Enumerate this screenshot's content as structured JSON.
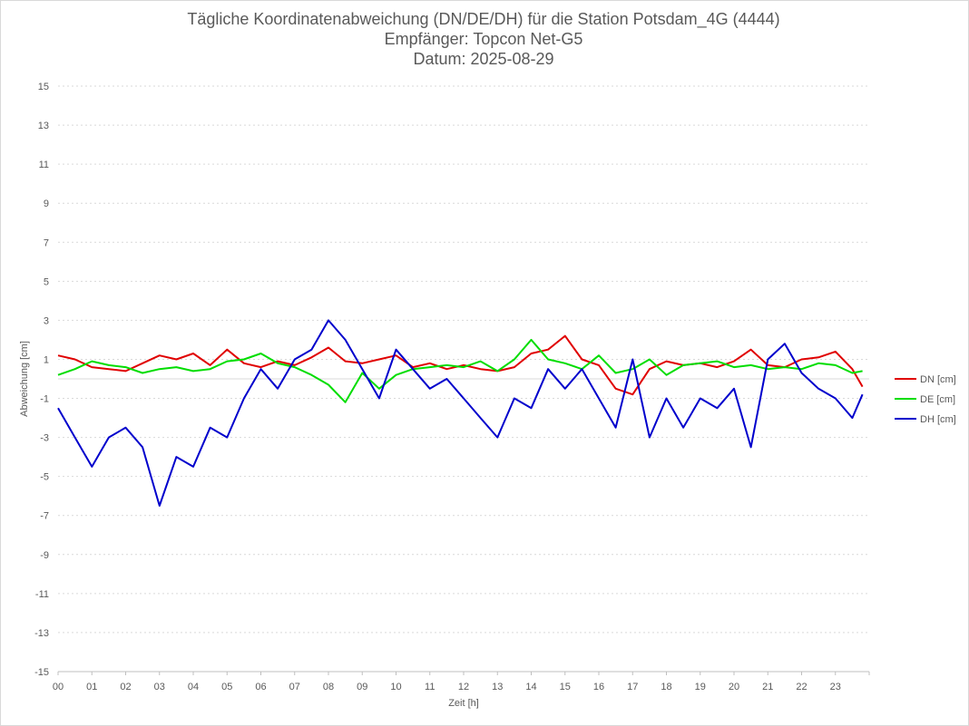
{
  "chart_data": {
    "type": "line",
    "title": "Tägliche Koordinatenabweichung (DN/DE/DH) für die Station Potsdam_4G (4444)",
    "subtitle1": "Empfänger: Topcon Net-G5",
    "subtitle2": "Datum: 2025-08-29",
    "xlabel": "Zeit [h]",
    "ylabel": "Abweichung [cm]",
    "xlim": [
      0,
      24
    ],
    "ylim": [
      -15,
      15
    ],
    "xticks": [
      "00",
      "01",
      "02",
      "03",
      "04",
      "05",
      "06",
      "07",
      "08",
      "09",
      "10",
      "11",
      "12",
      "13",
      "14",
      "15",
      "16",
      "17",
      "18",
      "19",
      "20",
      "21",
      "22",
      "23"
    ],
    "yticks": [
      15,
      13,
      11,
      9,
      7,
      5,
      3,
      1,
      -1,
      -3,
      -5,
      -7,
      -9,
      -11,
      -13,
      -15
    ],
    "grid": true,
    "legend_position": "right",
    "x": [
      0.0,
      0.5,
      1.0,
      1.5,
      2.0,
      2.5,
      3.0,
      3.5,
      4.0,
      4.5,
      5.0,
      5.5,
      6.0,
      6.5,
      7.0,
      7.5,
      8.0,
      8.5,
      9.0,
      9.5,
      10.0,
      10.5,
      11.0,
      11.5,
      12.0,
      12.5,
      13.0,
      13.5,
      14.0,
      14.5,
      15.0,
      15.5,
      16.0,
      16.5,
      17.0,
      17.5,
      18.0,
      18.5,
      19.0,
      19.5,
      20.0,
      20.5,
      21.0,
      21.5,
      22.0,
      22.5,
      23.0,
      23.5,
      23.8
    ],
    "series": [
      {
        "name": "DN [cm]",
        "color": "#e00000",
        "values": [
          1.2,
          1.0,
          0.6,
          0.5,
          0.4,
          0.8,
          1.2,
          1.0,
          1.3,
          0.7,
          1.5,
          0.8,
          0.6,
          0.9,
          0.7,
          1.1,
          1.6,
          0.9,
          0.8,
          1.0,
          1.2,
          0.6,
          0.8,
          0.5,
          0.7,
          0.5,
          0.4,
          0.6,
          1.3,
          1.5,
          2.2,
          1.0,
          0.7,
          -0.5,
          -0.8,
          0.5,
          0.9,
          0.7,
          0.8,
          0.6,
          0.9,
          1.5,
          0.7,
          0.6,
          1.0,
          1.1,
          1.4,
          0.5,
          -0.4
        ]
      },
      {
        "name": "DE [cm]",
        "color": "#00dd00",
        "values": [
          0.2,
          0.5,
          0.9,
          0.7,
          0.6,
          0.3,
          0.5,
          0.6,
          0.4,
          0.5,
          0.9,
          1.0,
          1.3,
          0.8,
          0.6,
          0.2,
          -0.3,
          -1.2,
          0.3,
          -0.5,
          0.2,
          0.5,
          0.6,
          0.7,
          0.6,
          0.9,
          0.4,
          1.0,
          2.0,
          1.0,
          0.8,
          0.5,
          1.2,
          0.3,
          0.5,
          1.0,
          0.2,
          0.7,
          0.8,
          0.9,
          0.6,
          0.7,
          0.5,
          0.6,
          0.5,
          0.8,
          0.7,
          0.3,
          0.4
        ]
      },
      {
        "name": "DH [cm]",
        "color": "#0000cc",
        "values": [
          -1.5,
          -3.0,
          -4.5,
          -3.0,
          -2.5,
          -3.5,
          -6.5,
          -4.0,
          -4.5,
          -2.5,
          -3.0,
          -1.0,
          0.5,
          -0.5,
          1.0,
          1.5,
          3.0,
          2.0,
          0.5,
          -1.0,
          1.5,
          0.5,
          -0.5,
          0.0,
          -1.0,
          -2.0,
          -3.0,
          -1.0,
          -1.5,
          0.5,
          -0.5,
          0.5,
          -1.0,
          -2.5,
          1.0,
          -3.0,
          -1.0,
          -2.5,
          -1.0,
          -1.5,
          -0.5,
          -3.5,
          1.0,
          1.8,
          0.3,
          -0.5,
          -1.0,
          -2.0,
          -0.8
        ]
      }
    ]
  }
}
